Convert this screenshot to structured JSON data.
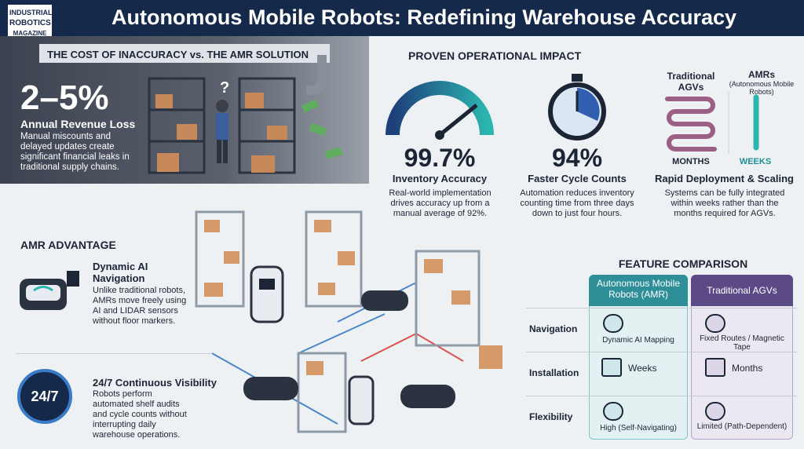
{
  "header": {
    "logo": [
      "INDUSTRIAL",
      "ROBOTICS",
      "MAGAZINE"
    ],
    "title": "Autonomous Mobile Robots: Redefining Warehouse Accuracy"
  },
  "cost": {
    "heading": "THE COST OF INACCURACY vs. THE AMR SOLUTION",
    "stat": "2–5%",
    "stat_label": "Annual Revenue Loss",
    "text": "Manual miscounts and delayed updates create significant financial leaks in traditional supply chains."
  },
  "impact": {
    "heading": "PROVEN OPERATIONAL IMPACT",
    "accuracy": {
      "value": "99.7%",
      "label": "Inventory Accuracy",
      "text": "Real-world implementation drives accuracy up from a manual average of 92%."
    },
    "cycle": {
      "value": "94%",
      "label": "Faster Cycle Counts",
      "text": "Automation reduces inventory counting time from three days down to just four hours."
    },
    "deploy": {
      "agv": "Traditional AGVs",
      "amr": "AMRs",
      "amr_sub": "(Autonomous Mobile Robots)",
      "months": "MONTHS",
      "weeks": "WEEKS",
      "label": "Rapid Deployment & Scaling",
      "text": "Systems can be fully integrated within weeks rather than the months required for AGVs."
    }
  },
  "advantage": {
    "heading": "AMR ADVANTAGE",
    "items": [
      {
        "title": "Dynamic AI Navigation",
        "text": "Unlike traditional robots, AMRs move freely using AI and LIDAR sensors without floor markers."
      },
      {
        "title": "24/7 Continuous Visibility",
        "text": "Robots perform automated shelf audits and cycle counts without interrupting daily warehouse operations."
      }
    ],
    "badge": "24/7"
  },
  "comparison": {
    "heading": "FEATURE COMPARISON",
    "columns": [
      "Autonomous Mobile Robots (AMR)",
      "Traditional AGVs"
    ],
    "rows": [
      {
        "label": "Navigation",
        "amr": "Dynamic AI Mapping",
        "agv": "Fixed Routes / Magnetic Tape"
      },
      {
        "label": "Installation",
        "amr": "Weeks",
        "agv": "Months"
      },
      {
        "label": "Flexibility",
        "amr": "High (Self-Navigating)",
        "agv": "Limited (Path-Dependent)"
      }
    ]
  }
}
